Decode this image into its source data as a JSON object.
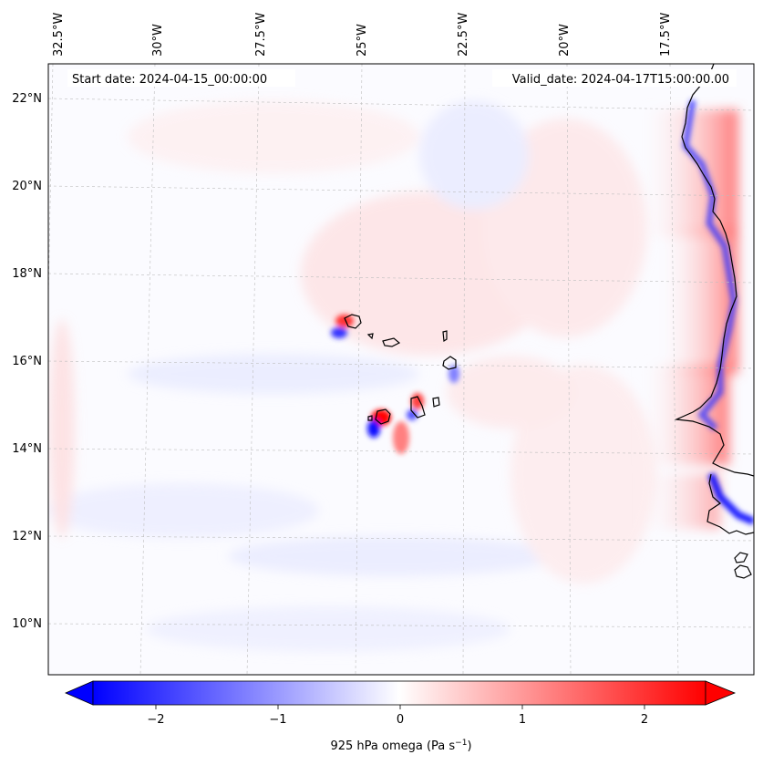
{
  "header": {
    "start_date": "Start date: 2024-04-15_00:00:00",
    "valid_date": "Valid_date: 2024-04-17T15:00:00.00"
  },
  "map": {
    "longitude_labels": [
      "32.5°W",
      "30°W",
      "27.5°W",
      "25°W",
      "22.5°W",
      "20°W",
      "17.5°W"
    ],
    "latitude_labels": [
      "22°N",
      "20°N",
      "18°N",
      "16°N",
      "14°N",
      "12°N",
      "10°N"
    ],
    "features": [
      "cape-verde-islands",
      "west-africa-coastline"
    ]
  },
  "colorbar": {
    "label": "925 hPa omega (Pa s",
    "label_sup": "−1",
    "label_close": ")",
    "ticks": [
      "−2",
      "−1",
      "0",
      "1",
      "2"
    ],
    "colormap": "bwr",
    "min_color": "#0000ff",
    "mid_color": "#ffffff",
    "max_color": "#ff0000",
    "range": [
      -2.6,
      2.6
    ],
    "extend": "both"
  }
}
